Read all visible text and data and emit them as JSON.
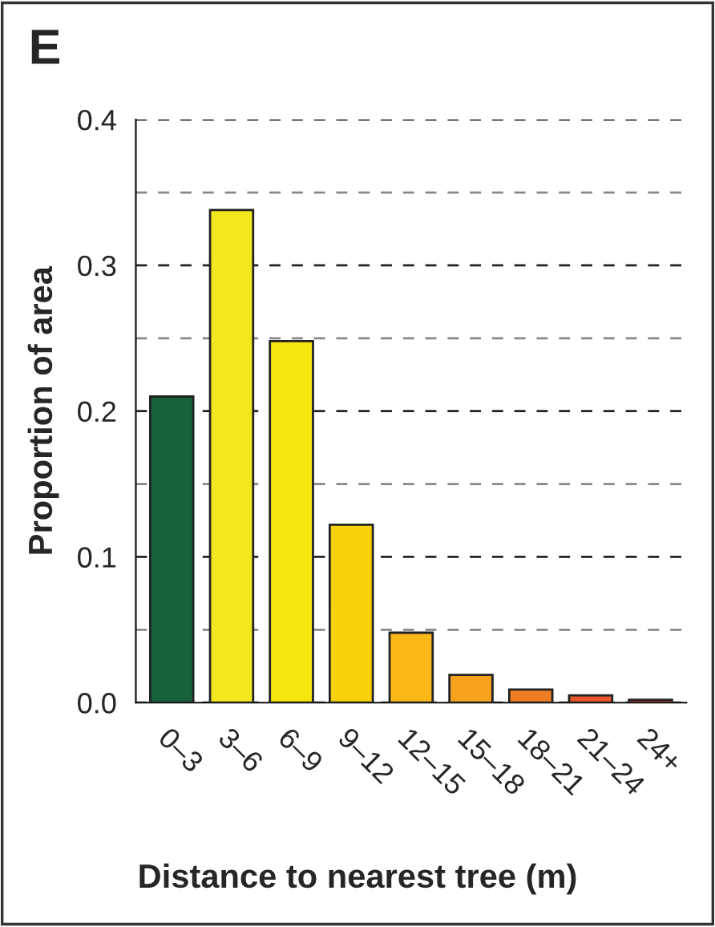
{
  "chart_data": {
    "type": "bar",
    "title": "E",
    "xlabel": "Distance to nearest tree (m)",
    "ylabel": "Proportion of area",
    "categories": [
      "0–3",
      "3–6",
      "6–9",
      "9–12",
      "12–15",
      "15–18",
      "18–21",
      "21–24",
      "24+"
    ],
    "values": [
      0.21,
      0.338,
      0.248,
      0.122,
      0.048,
      0.019,
      0.009,
      0.005,
      0.002
    ],
    "colors": [
      "#17623a",
      "#f2e81d",
      "#f6e60f",
      "#f9d00c",
      "#fbb817",
      "#f7a21f",
      "#f07d22",
      "#e8572a",
      "#c9382a"
    ],
    "ylim": [
      0,
      0.4
    ],
    "yticks": [
      {
        "value": 0,
        "label": "0.0"
      },
      {
        "value": 0.05,
        "label": null
      },
      0.1,
      {
        "value": 0.15,
        "label": null
      },
      0.2,
      {
        "value": 0.25,
        "label": null
      },
      0.3,
      {
        "value": 0.35,
        "label": null
      },
      0.4
    ],
    "grid": "y"
  }
}
